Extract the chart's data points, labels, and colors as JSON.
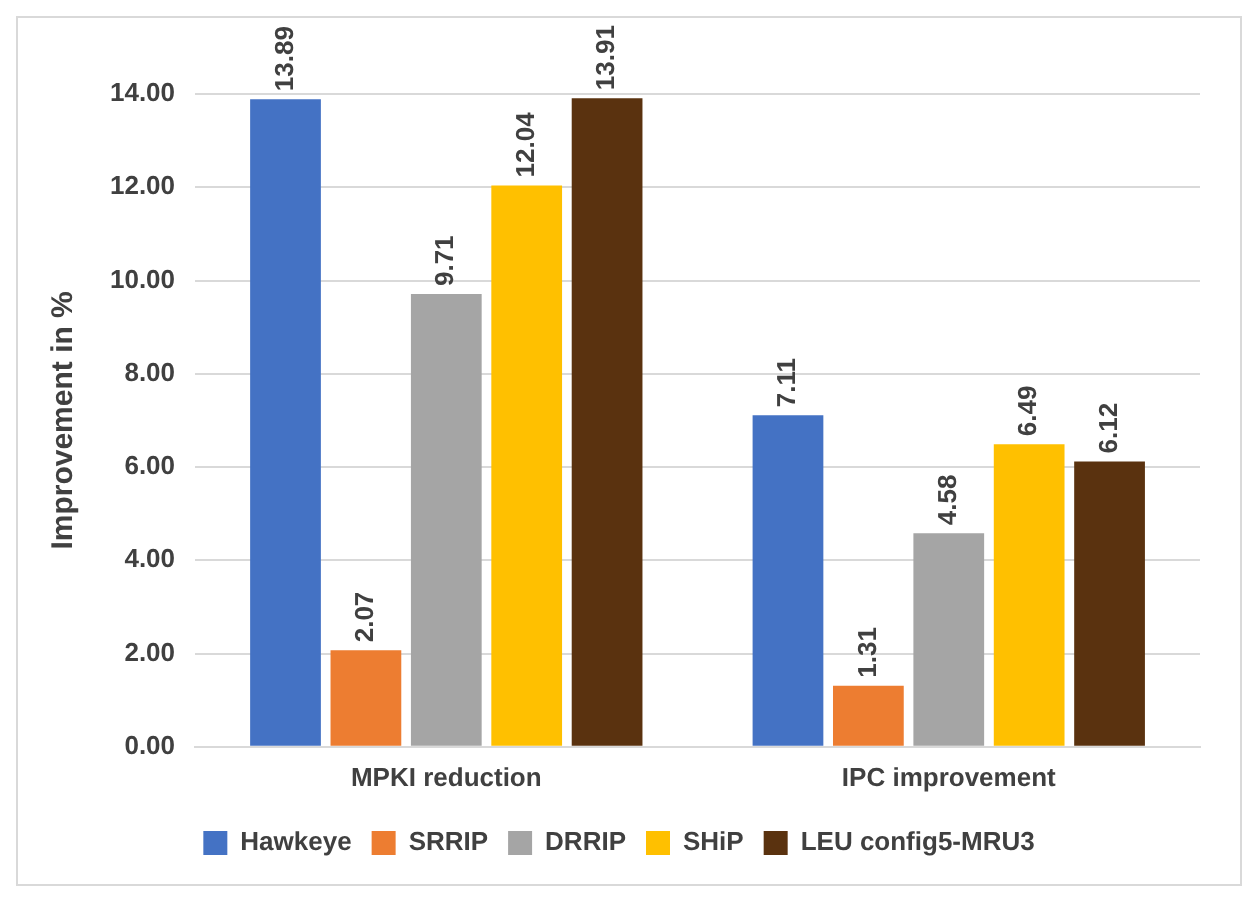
{
  "chart_data": {
    "type": "bar",
    "ylabel": "Improvement in %",
    "categories": [
      "MPKI reduction",
      "IPC improvement"
    ],
    "series": [
      {
        "name": "Hawkeye",
        "color": "#4472c4",
        "values": [
          13.89,
          7.11
        ]
      },
      {
        "name": "SRRIP",
        "color": "#ed7d31",
        "values": [
          2.07,
          1.31
        ]
      },
      {
        "name": "DRRIP",
        "color": "#a5a5a5",
        "values": [
          9.71,
          4.58
        ]
      },
      {
        "name": "SHiP",
        "color": "#ffc000",
        "values": [
          12.04,
          6.49
        ]
      },
      {
        "name": "LEU config5-MRU3",
        "color": "#5a320f",
        "values": [
          13.91,
          6.12
        ]
      }
    ],
    "ylim": [
      0,
      14
    ],
    "yticks": [
      {
        "value": 0,
        "label": "0.00"
      },
      {
        "value": 2,
        "label": "2.00"
      },
      {
        "value": 4,
        "label": "4.00"
      },
      {
        "value": 6,
        "label": "6.00"
      },
      {
        "value": 8,
        "label": "8.00"
      },
      {
        "value": 10,
        "label": "10.00"
      },
      {
        "value": 12,
        "label": "12.00"
      },
      {
        "value": 14,
        "label": "14.00"
      }
    ],
    "grid": "y",
    "legend": "bottom",
    "data_labels": true
  }
}
